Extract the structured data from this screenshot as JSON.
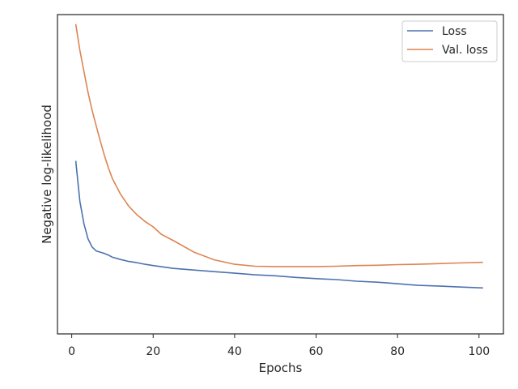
{
  "chart_data": {
    "type": "line",
    "xlabel": "Epochs",
    "ylabel": "Negative log-likelihood",
    "xlim": [
      -3.5,
      106
    ],
    "ylim": [
      0,
      1
    ],
    "x_ticks": [
      0,
      20,
      40,
      60,
      80,
      100
    ],
    "y_ticks": [],
    "grid": false,
    "legend_position": "top-right",
    "series": [
      {
        "name": "Loss",
        "color": "#4c72b0",
        "x": [
          1,
          2,
          3,
          4,
          5,
          6,
          7,
          8,
          9,
          10,
          12,
          14,
          16,
          18,
          20,
          25,
          30,
          35,
          40,
          45,
          50,
          55,
          60,
          65,
          70,
          75,
          80,
          85,
          90,
          95,
          101
        ],
        "y": [
          0.542,
          0.415,
          0.345,
          0.298,
          0.272,
          0.26,
          0.256,
          0.252,
          0.247,
          0.24,
          0.233,
          0.227,
          0.223,
          0.218,
          0.214,
          0.205,
          0.2,
          0.195,
          0.19,
          0.185,
          0.182,
          0.177,
          0.173,
          0.17,
          0.165,
          0.162,
          0.157,
          0.152,
          0.15,
          0.147,
          0.144
        ]
      },
      {
        "name": "Val. loss",
        "color": "#dd8452",
        "x": [
          1,
          2,
          3,
          4,
          5,
          6,
          7,
          8,
          9,
          10,
          12,
          14,
          16,
          18,
          20,
          22,
          25,
          30,
          35,
          40,
          45,
          50,
          55,
          60,
          65,
          70,
          75,
          80,
          85,
          90,
          95,
          101
        ],
        "y": [
          0.97,
          0.888,
          0.822,
          0.757,
          0.7,
          0.652,
          0.605,
          0.56,
          0.52,
          0.486,
          0.437,
          0.4,
          0.373,
          0.352,
          0.335,
          0.312,
          0.292,
          0.256,
          0.232,
          0.218,
          0.212,
          0.211,
          0.211,
          0.211,
          0.212,
          0.214,
          0.215,
          0.217,
          0.218,
          0.22,
          0.222,
          0.224
        ]
      }
    ]
  }
}
